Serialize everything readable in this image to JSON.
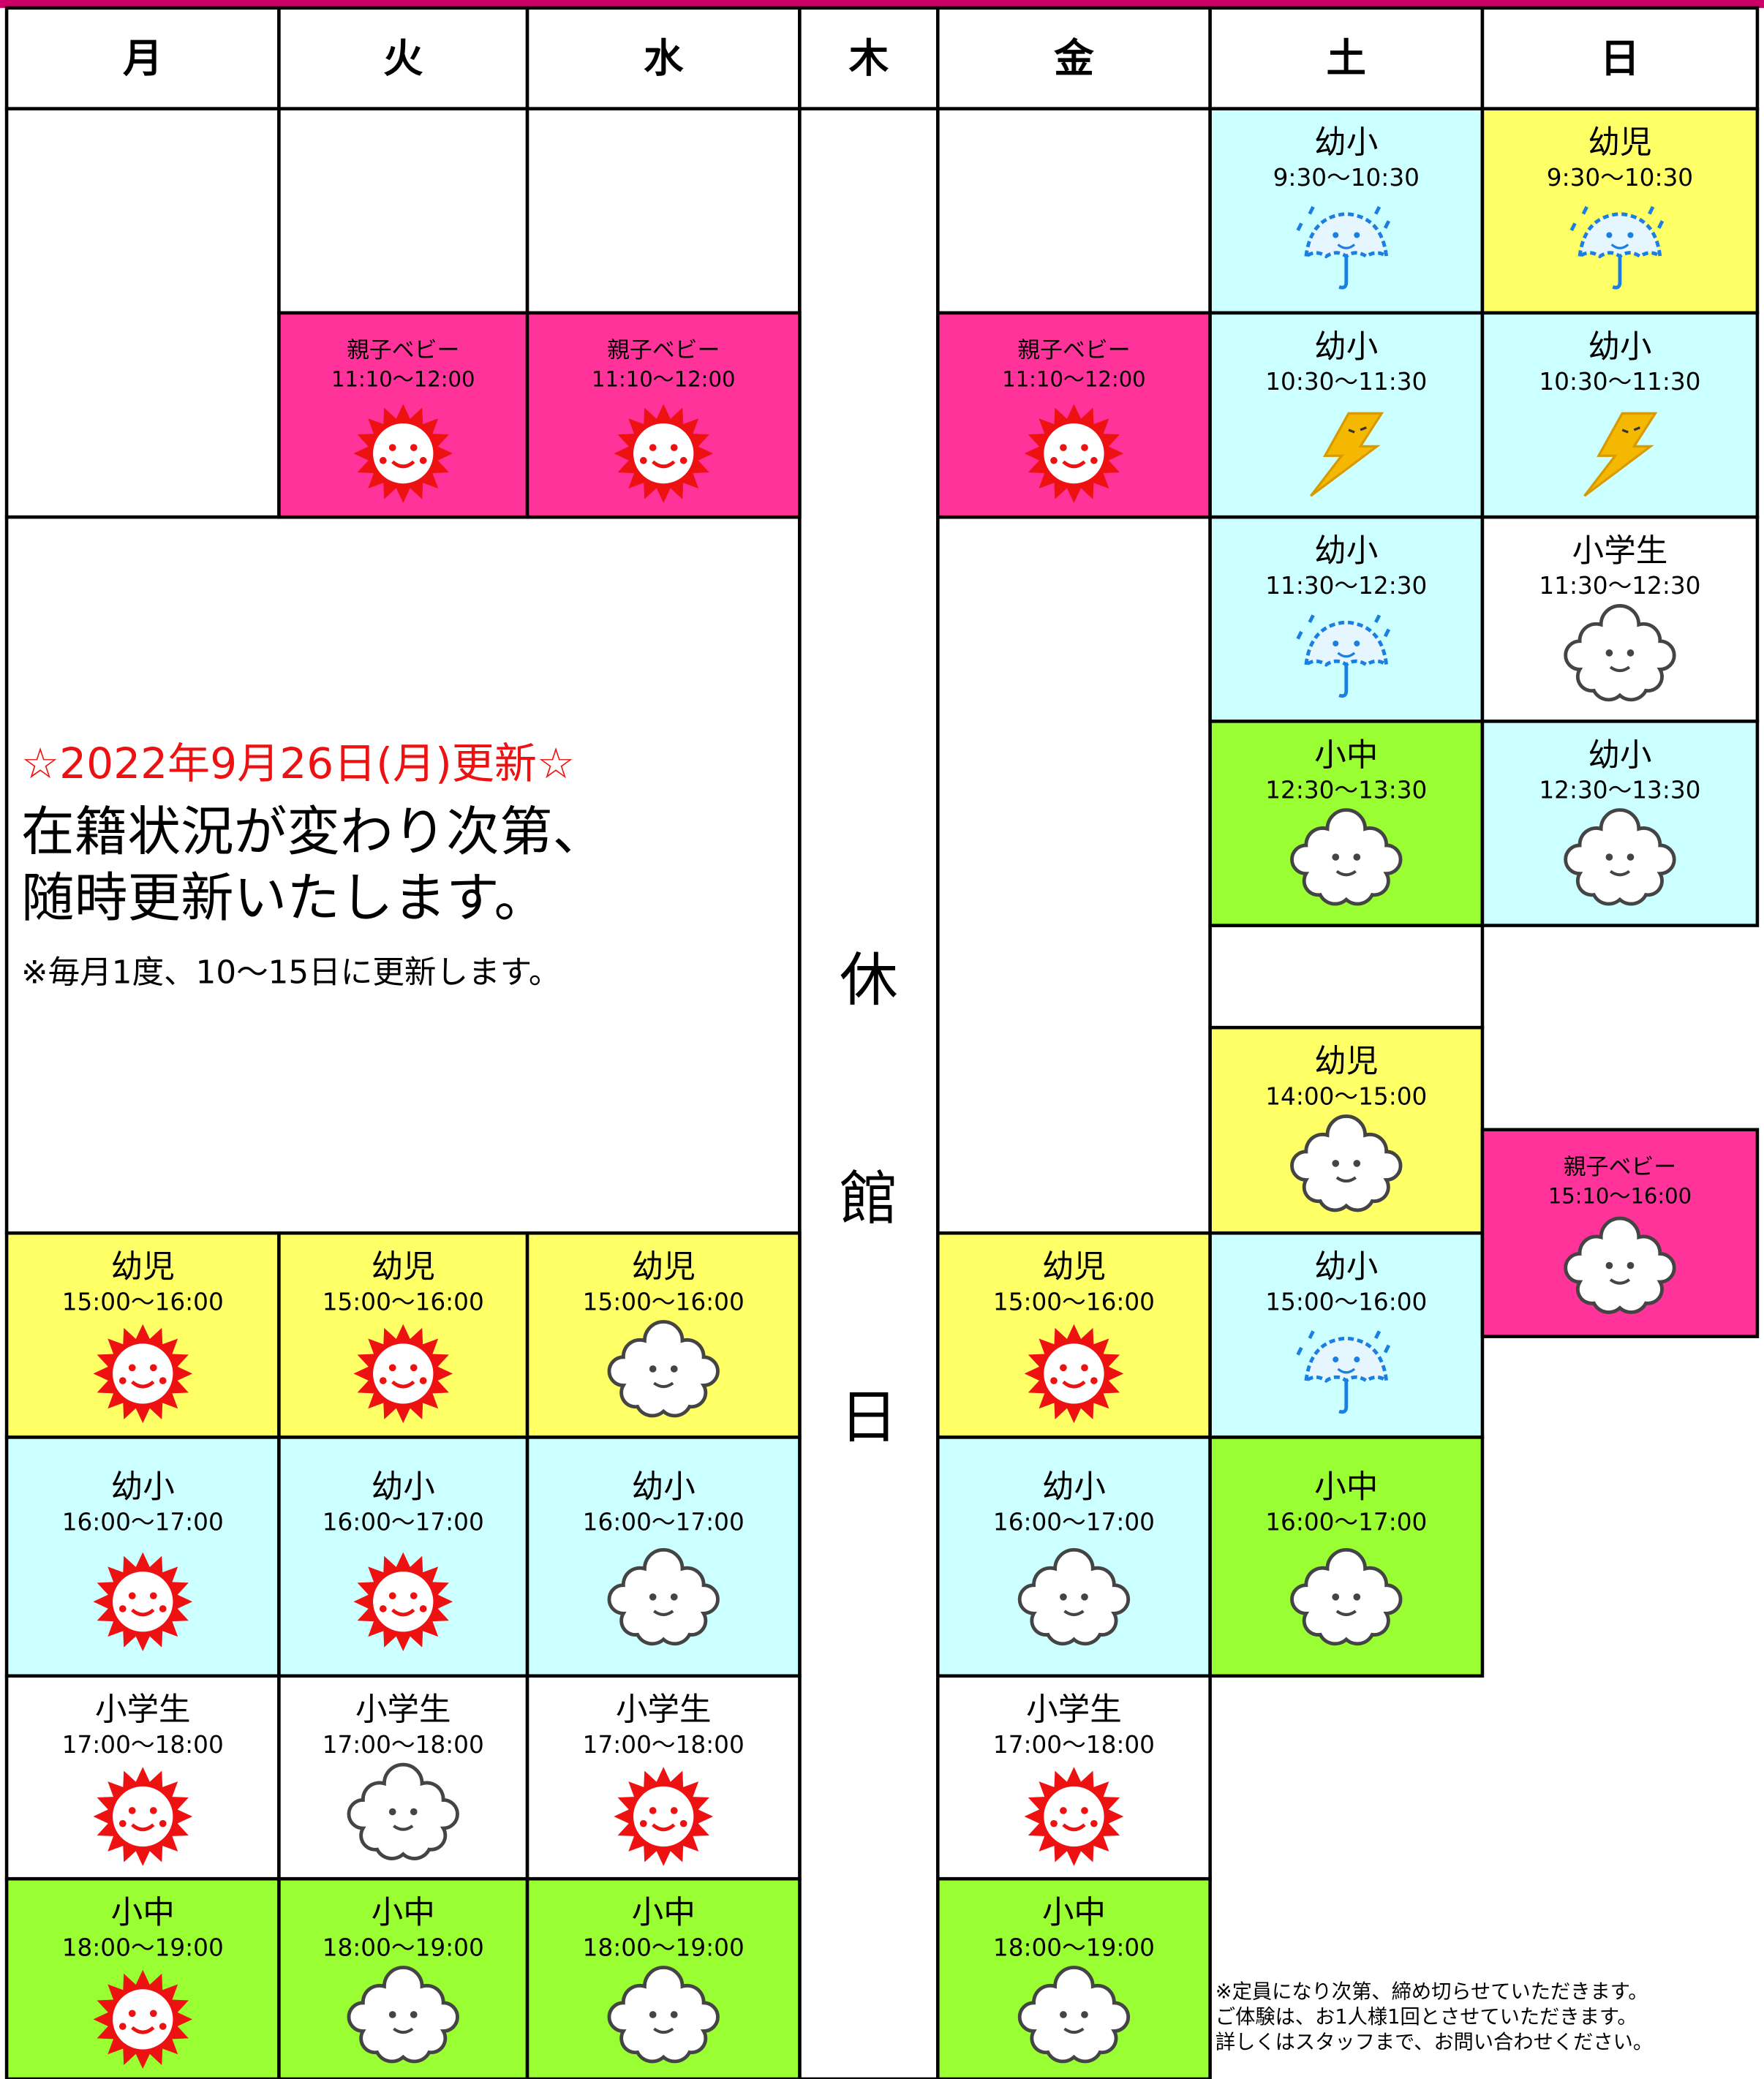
{
  "header": {
    "days": [
      "月",
      "火",
      "水",
      "木",
      "金",
      "土",
      "日"
    ]
  },
  "closed": {
    "chars": [
      "休",
      "館",
      "日"
    ]
  },
  "notice": {
    "update": "☆2022年9月26日(月)更新☆",
    "lines": [
      "在籍状況が変わり次第、",
      "随時更新いたします。"
    ],
    "note": "※毎月1度、10〜15日に更新します。"
  },
  "classes": [
    {
      "name": "幼児",
      "time": "15:00〜16:00"
    },
    {
      "name": "幼小",
      "time": "16:00〜17:00"
    },
    {
      "name": "小学生",
      "time": "17:00〜18:00"
    },
    {
      "name": "小中",
      "time": "18:00〜19:00"
    },
    {
      "name": "親子ベビー",
      "time": "11:10〜12:00"
    },
    {
      "name": "幼児",
      "time": "15:00〜16:00"
    },
    {
      "name": "幼小",
      "time": "16:00〜17:00"
    },
    {
      "name": "小学生",
      "time": "17:00〜18:00"
    },
    {
      "name": "小中",
      "time": "18:00〜19:00"
    },
    {
      "name": "親子ベビー",
      "time": "11:10〜12:00"
    },
    {
      "name": "幼児",
      "time": "15:00〜16:00"
    },
    {
      "name": "幼小",
      "time": "16:00〜17:00"
    },
    {
      "name": "小学生",
      "time": "17:00〜18:00"
    },
    {
      "name": "小中",
      "time": "18:00〜19:00"
    },
    {
      "name": "親子ベビー",
      "time": "11:10〜12:00"
    },
    {
      "name": "幼児",
      "time": "15:00〜16:00"
    },
    {
      "name": "幼小",
      "time": "16:00〜17:00"
    },
    {
      "name": "小学生",
      "time": "17:00〜18:00"
    },
    {
      "name": "小中",
      "time": "18:00〜19:00"
    },
    {
      "name": "幼小",
      "time": "9:30〜10:30"
    },
    {
      "name": "幼小",
      "time": "10:30〜11:30"
    },
    {
      "name": "幼小",
      "time": "11:30〜12:30"
    },
    {
      "name": "小中",
      "time": "12:30〜13:30"
    },
    {
      "name": "幼児",
      "time": "14:00〜15:00"
    },
    {
      "name": "幼小",
      "time": "15:00〜16:00"
    },
    {
      "name": "小中",
      "time": "16:00〜17:00"
    },
    {
      "name": "幼児",
      "time": "9:30〜10:30"
    },
    {
      "name": "幼小",
      "time": "10:30〜11:30"
    },
    {
      "name": "小学生",
      "time": "11:30〜12:30"
    },
    {
      "name": "幼小",
      "time": "12:30〜13:30"
    },
    {
      "name": "親子ベビー",
      "time": "15:10〜16:00"
    }
  ],
  "footnote": [
    "※定員になり次第、締め切らせていただきます。",
    "ご体験は、お1人様1回とさせていただきます。",
    "詳しくはスタッフまで、お問い合わせください。"
  ]
}
